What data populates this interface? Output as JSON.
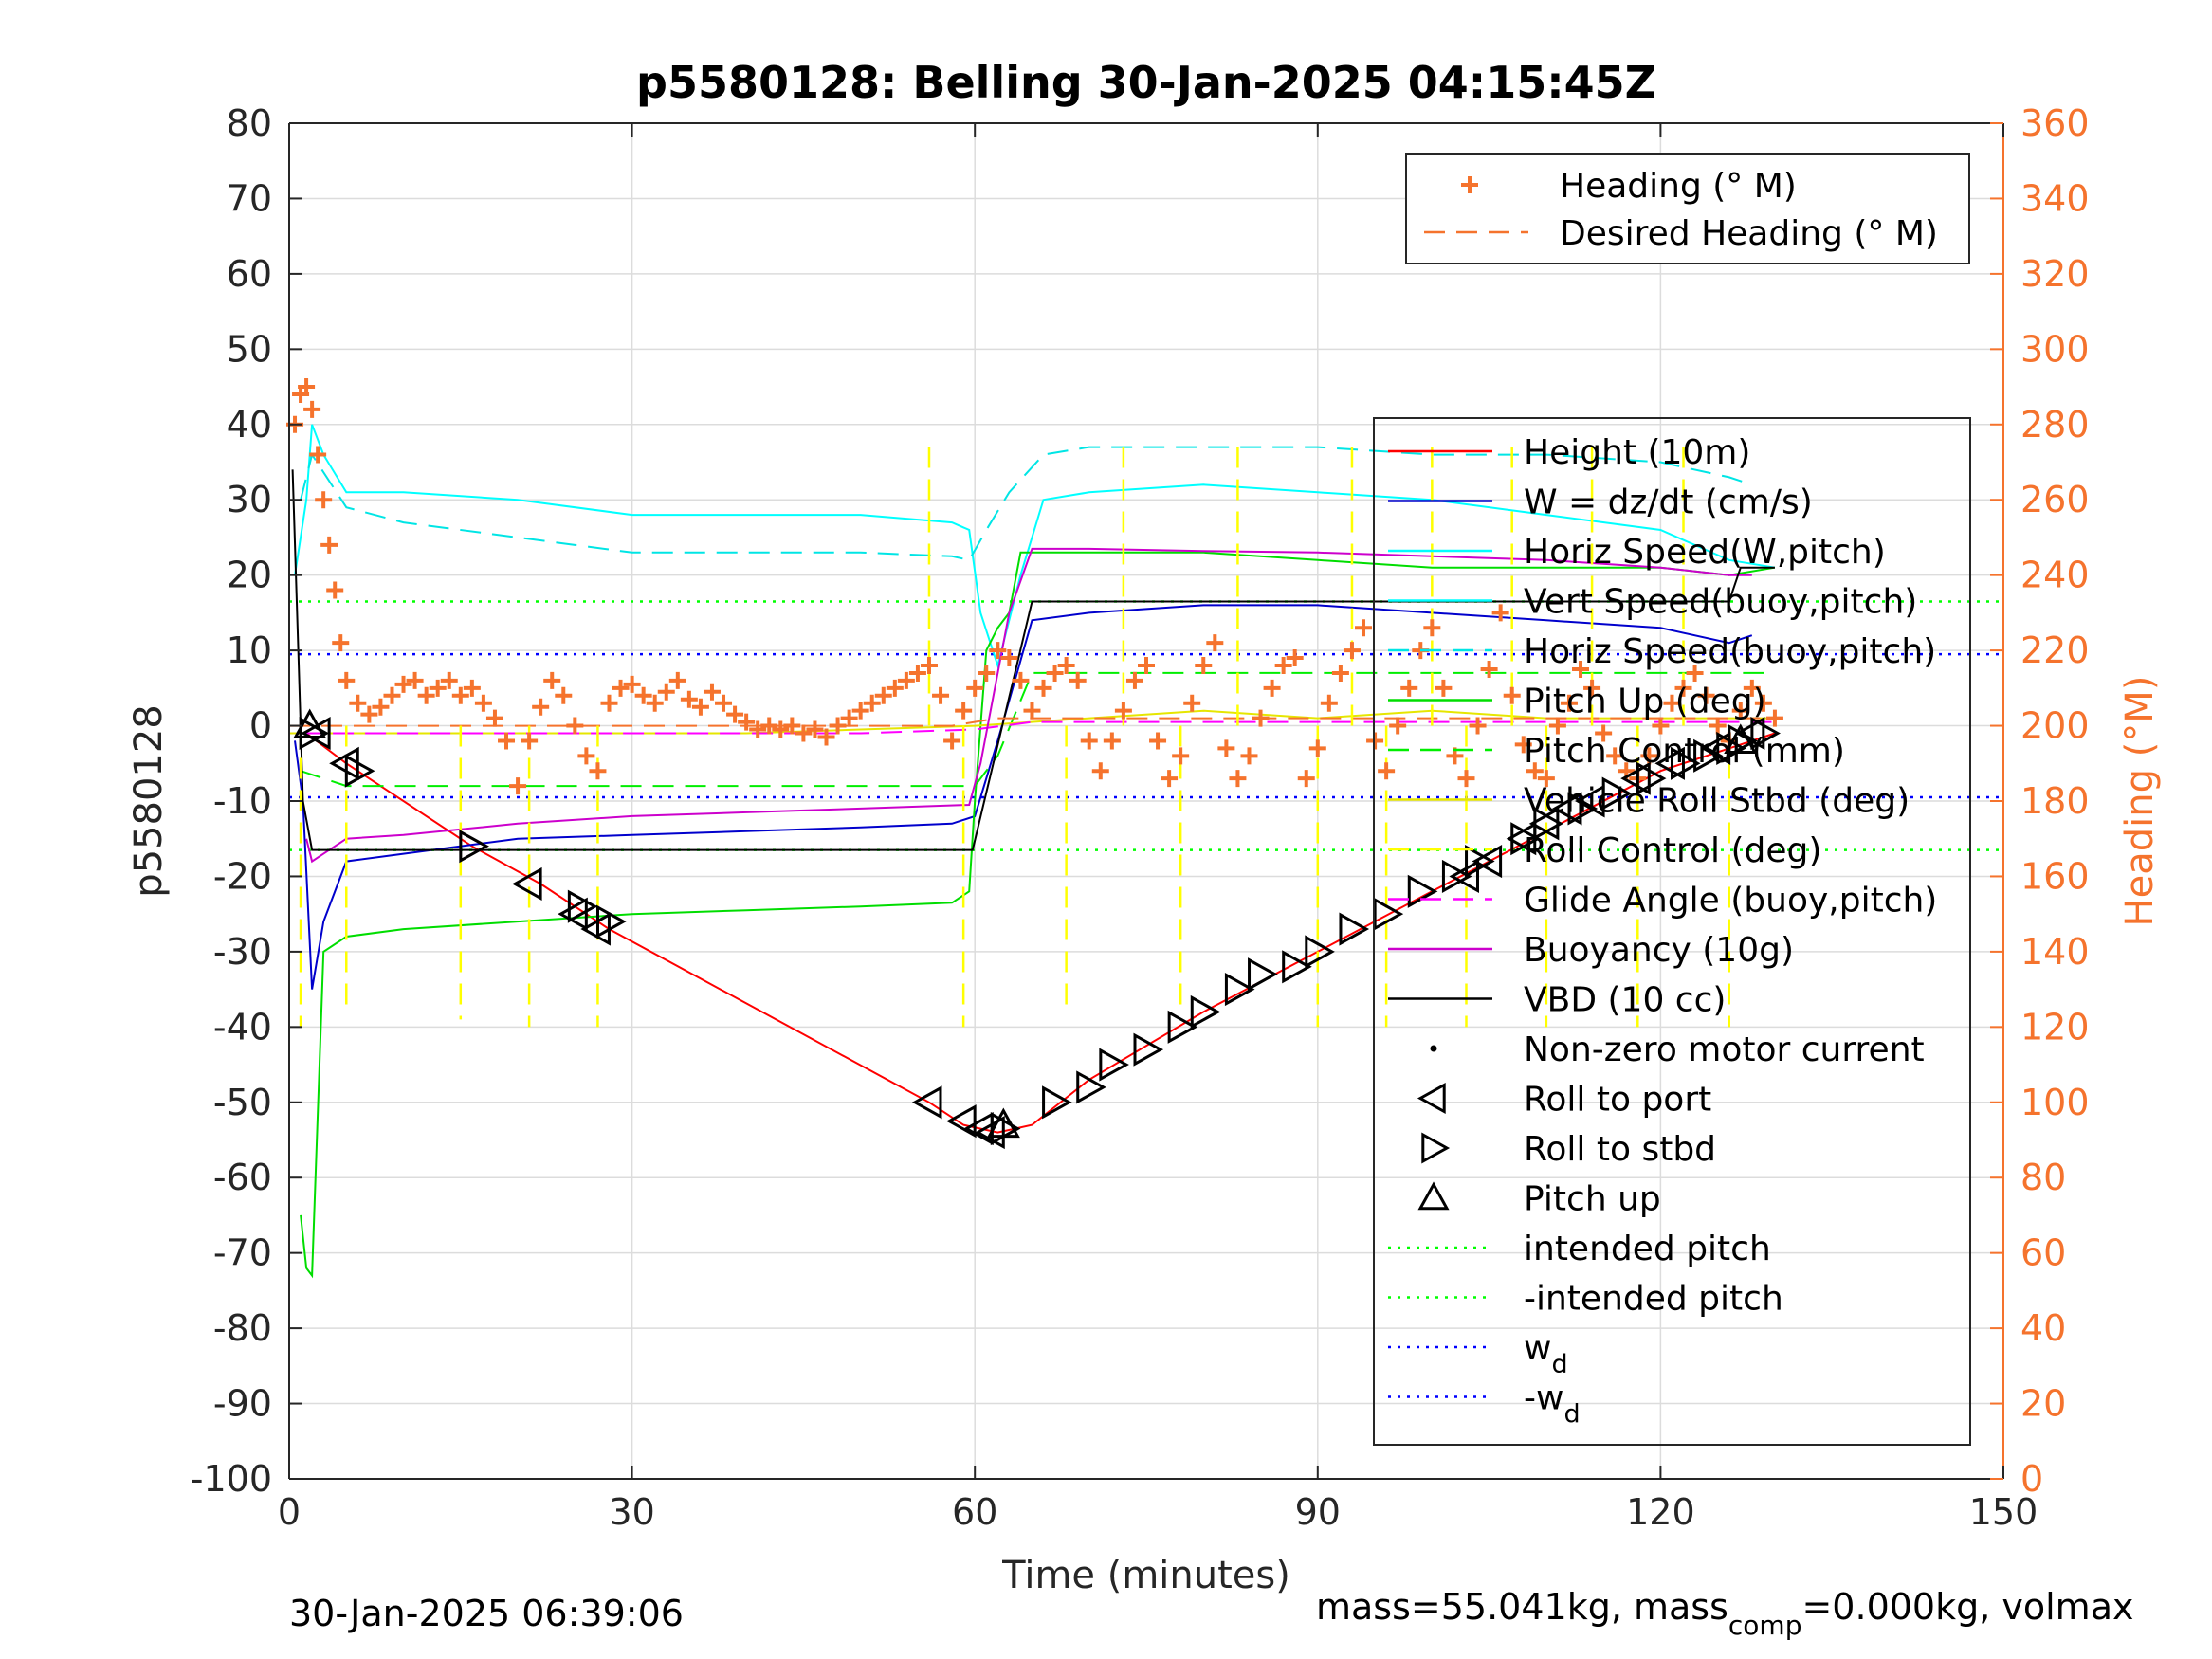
{
  "chart_data": {
    "type": "line",
    "title": "p5580128: Belling 30-Jan-2025 04:15:45Z",
    "xlabel": "Time (minutes)",
    "ylabel": "p5580128",
    "ylabel_right": "Heading (°M)",
    "xlim": [
      0,
      150
    ],
    "ylim": [
      -100,
      80
    ],
    "ylim_right": [
      0,
      360
    ],
    "xticks": [
      0,
      30,
      60,
      90,
      120,
      150
    ],
    "yticks": [
      -100,
      -90,
      -80,
      -70,
      -60,
      -50,
      -40,
      -30,
      -20,
      -10,
      0,
      10,
      20,
      30,
      40,
      50,
      60,
      70,
      80
    ],
    "yticks_right": [
      0,
      20,
      40,
      60,
      80,
      100,
      120,
      140,
      160,
      180,
      200,
      220,
      240,
      260,
      280,
      300,
      320,
      340,
      360
    ],
    "grid": true,
    "footer_left": "30-Jan-2025 06:39:06",
    "footer_right": {
      "pre": "mass=55.041kg, mass",
      "sub": "comp",
      "post": "=0.000kg, volmax"
    },
    "legend_top": {
      "placement": "top-right",
      "entries": [
        {
          "label": "Heading (° M)",
          "color": "#f5732d",
          "style": "plus"
        },
        {
          "label": "Desired Heading (° M)",
          "color": "#f5732d",
          "style": "dashed"
        }
      ]
    },
    "legend_main": {
      "placement": "right",
      "entries": [
        {
          "label": "Height (10m)",
          "color": "#ff0000",
          "style": "solid"
        },
        {
          "label": "W = dz/dt (cm/s)",
          "color": "#0000cc",
          "style": "solid"
        },
        {
          "label": "Horiz Speed(W,pitch)",
          "color": "#00ffff",
          "style": "solid"
        },
        {
          "label": "Vert Speed(buoy,pitch)",
          "color": "#00ffff",
          "style": "solid"
        },
        {
          "label": "Horiz Speed(buoy,pitch)",
          "color": "#00e5e5",
          "style": "dashed"
        },
        {
          "label": "Pitch Up (deg)",
          "color": "#00dd00",
          "style": "solid"
        },
        {
          "label": "Pitch Control (mm)",
          "color": "#00ee00",
          "style": "dashed"
        },
        {
          "label": "Vehicle Roll Stbd (deg)",
          "color": "#e6e600",
          "style": "solid"
        },
        {
          "label": "Roll Control (deg)",
          "color": "#ffff00",
          "style": "dashed"
        },
        {
          "label": "Glide Angle (buoy,pitch)",
          "color": "#ff00ff",
          "style": "dashed"
        },
        {
          "label": "Buoyancy (10g)",
          "color": "#cc00cc",
          "style": "solid"
        },
        {
          "label": "VBD (10 cc)",
          "color": "#000000",
          "style": "solid"
        },
        {
          "label": "Non-zero motor current",
          "color": "#000000",
          "style": "dot"
        },
        {
          "label": "Roll to port",
          "color": "#000000",
          "style": "tri-left"
        },
        {
          "label": "Roll to stbd",
          "color": "#000000",
          "style": "tri-right"
        },
        {
          "label": "Pitch up",
          "color": "#000000",
          "style": "tri-up"
        },
        {
          "label": "intended pitch",
          "color": "#00ff00",
          "style": "dotted"
        },
        {
          "label": "-intended pitch",
          "color": "#00ff00",
          "style": "dotted"
        },
        {
          "label": "w",
          "sub": "d",
          "color": "#0000ff",
          "style": "dotted"
        },
        {
          "label": "-w",
          "sub": "d",
          "color": "#0000ff",
          "style": "dotted"
        }
      ]
    },
    "series": [
      {
        "name": "Height (10m)",
        "axis": "left",
        "color": "#ff0000",
        "style": "solid",
        "x": [
          1.5,
          5,
          16,
          22,
          28,
          56,
          59,
          62,
          65,
          70,
          80,
          90,
          100,
          110,
          120,
          126,
          130
        ],
        "y": [
          -1,
          -5,
          -16,
          -21,
          -27,
          -50,
          -53,
          -54,
          -53,
          -47,
          -38,
          -30,
          -22,
          -14,
          -6,
          -3,
          -1
        ]
      },
      {
        "name": "W = dz/dt (cm/s)",
        "axis": "left",
        "color": "#0000cc",
        "style": "solid",
        "x": [
          0.5,
          1.2,
          2,
          3,
          5,
          10,
          20,
          30,
          40,
          50,
          58,
          60,
          62,
          65,
          70,
          80,
          90,
          100,
          110,
          120,
          126,
          128
        ],
        "y": [
          -2,
          -10,
          -35,
          -26,
          -18,
          -17,
          -15,
          -14.5,
          -14,
          -13.5,
          -13,
          -12,
          -2,
          14,
          15,
          16,
          16,
          15,
          14,
          13,
          11,
          12
        ]
      },
      {
        "name": "Horiz Speed(W,pitch)",
        "axis": "left",
        "color": "#00ffff",
        "style": "solid",
        "x": [
          0.5,
          1.5,
          2,
          3,
          5,
          10,
          20,
          30,
          40,
          50,
          58,
          59.5,
          60.5,
          62,
          64,
          66,
          70,
          80,
          90,
          100,
          110,
          120,
          126,
          130
        ],
        "y": [
          20,
          30,
          40,
          36,
          31,
          31,
          30,
          28,
          28,
          28,
          27,
          26,
          15,
          8,
          20,
          30,
          31,
          32,
          31,
          30,
          28,
          26,
          22,
          21
        ]
      },
      {
        "name": "Horiz Speed(buoy,pitch)",
        "axis": "left",
        "color": "#00e5e5",
        "style": "dashed",
        "x": [
          1,
          2,
          5,
          10,
          20,
          30,
          40,
          50,
          58,
          59.5,
          61,
          63,
          66,
          70,
          80,
          90,
          100,
          110,
          120,
          126,
          128
        ],
        "y": [
          30,
          36,
          29,
          27,
          25,
          23,
          23,
          23,
          22.5,
          22,
          26,
          31,
          36,
          37,
          37,
          37,
          36,
          36,
          35,
          33,
          32
        ]
      },
      {
        "name": "Pitch Up (deg)",
        "axis": "left",
        "color": "#00dd00",
        "style": "solid",
        "x": [
          1,
          1.5,
          2,
          3,
          5,
          10,
          20,
          30,
          40,
          50,
          58,
          59.5,
          60,
          61,
          62,
          63,
          64,
          70,
          80,
          90,
          100,
          110,
          120,
          126,
          130
        ],
        "y": [
          -65,
          -72,
          -73,
          -30,
          -28,
          -27,
          -26,
          -25,
          -24.5,
          -24,
          -23.5,
          -22,
          -10,
          10,
          13,
          15,
          23,
          23,
          23,
          22,
          21,
          21,
          21,
          20,
          21
        ]
      },
      {
        "name": "Pitch Control (mm)",
        "axis": "left",
        "color": "#00ee00",
        "style": "dashed",
        "x": [
          1,
          5,
          20,
          40,
          60,
          62,
          65,
          80,
          100,
          130
        ],
        "y": [
          -6,
          -8,
          -8,
          -8,
          -8,
          -4,
          7,
          7,
          7,
          7
        ]
      },
      {
        "name": "Vehicle Roll Stbd (deg)",
        "axis": "left",
        "color": "#e6e600",
        "style": "solid",
        "x": [
          0,
          10,
          20,
          30,
          40,
          50,
          60,
          70,
          80,
          90,
          100,
          110,
          120,
          130
        ],
        "y": [
          -1,
          -1,
          -1,
          -1,
          -1,
          -0.5,
          0,
          1,
          2,
          1,
          2,
          1,
          1,
          1
        ]
      },
      {
        "name": "Glide Angle (buoy,pitch)",
        "axis": "left",
        "color": "#ff00ff",
        "style": "dashed",
        "x": [
          1,
          10,
          30,
          50,
          60,
          65,
          80,
          100,
          120,
          130
        ],
        "y": [
          -1,
          -1,
          -1,
          -1,
          -0.5,
          0.5,
          0.5,
          0.5,
          0.5,
          0.5
        ]
      },
      {
        "name": "Buoyancy (10g)",
        "axis": "left",
        "color": "#cc00cc",
        "style": "solid",
        "x": [
          1.5,
          2,
          3,
          5,
          10,
          20,
          30,
          40,
          50,
          59.5,
          60.5,
          63,
          65,
          70,
          80,
          90,
          100,
          110,
          120,
          126,
          128
        ],
        "y": [
          -15,
          -18,
          -17,
          -15,
          -14.5,
          -13,
          -12,
          -11.5,
          -11,
          -10.5,
          -5,
          15,
          23.5,
          23.5,
          23.2,
          23,
          22.5,
          22,
          21,
          20,
          20
        ]
      },
      {
        "name": "VBD (10 cc)",
        "axis": "left",
        "color": "#000000",
        "style": "solid",
        "x": [
          0.3,
          0.8,
          1.2,
          2,
          3,
          10,
          20,
          30,
          40,
          50,
          59.8,
          65,
          70,
          80,
          90,
          100,
          110,
          120,
          126,
          127,
          130
        ],
        "y": [
          34,
          10,
          -10,
          -16.5,
          -16.5,
          -16.5,
          -16.5,
          -16.5,
          -16.5,
          -16.5,
          -16.5,
          16.5,
          16.5,
          16.5,
          16.5,
          16.5,
          16.5,
          16.5,
          16.5,
          21,
          21
        ]
      },
      {
        "name": "intended pitch",
        "axis": "left",
        "color": "#00ff00",
        "style": "dotted",
        "x": [
          0,
          150
        ],
        "y": [
          16.5,
          16.5
        ]
      },
      {
        "name": "-intended pitch",
        "axis": "left",
        "color": "#00ff00",
        "style": "dotted",
        "x": [
          0,
          150
        ],
        "y": [
          -16.5,
          -16.5
        ]
      },
      {
        "name": "w_d",
        "axis": "left",
        "color": "#0000ff",
        "style": "dotted",
        "x": [
          0,
          150
        ],
        "y": [
          9.5,
          9.5
        ]
      },
      {
        "name": "-w_d",
        "axis": "left",
        "color": "#0000ff",
        "style": "dotted",
        "x": [
          0,
          150
        ],
        "y": [
          -9.5,
          -9.5
        ]
      },
      {
        "name": "Desired Heading (° M)",
        "axis": "right",
        "color": "#f5732d",
        "style": "dashed",
        "x": [
          0,
          5,
          20,
          40,
          58,
          62,
          70,
          90,
          110,
          130
        ],
        "y": [
          200,
          200,
          200,
          200,
          200,
          202,
          202,
          202,
          202,
          202
        ]
      },
      {
        "name": "Heading (° M)",
        "axis": "right",
        "color": "#f5732d",
        "style": "plus",
        "x": [
          0.5,
          1,
          1.5,
          2,
          2.5,
          3,
          3.5,
          4,
          4.5,
          5,
          6,
          7,
          8,
          9,
          10,
          11,
          12,
          13,
          14,
          15,
          16,
          17,
          18,
          19,
          20,
          21,
          22,
          23,
          24,
          25,
          26,
          27,
          28,
          29,
          30,
          31,
          32,
          33,
          34,
          35,
          36,
          37,
          38,
          39,
          40,
          41,
          42,
          43,
          44,
          45,
          46,
          47,
          48,
          49,
          50,
          51,
          52,
          53,
          54,
          55,
          56,
          57,
          58,
          59,
          60,
          61,
          62,
          63,
          64,
          65,
          66,
          67,
          68,
          69,
          70,
          71,
          72,
          73,
          74,
          75,
          76,
          77,
          78,
          79,
          80,
          81,
          82,
          83,
          84,
          85,
          86,
          87,
          88,
          89,
          90,
          91,
          92,
          93,
          94,
          95,
          96,
          97,
          98,
          99,
          100,
          101,
          102,
          103,
          104,
          105,
          106,
          107,
          108,
          109,
          110,
          111,
          112,
          113,
          114,
          115,
          116,
          117,
          118,
          119,
          120,
          121,
          122,
          123,
          124,
          125,
          126,
          127,
          128,
          129,
          130
        ],
        "y": [
          280,
          288,
          290,
          284,
          272,
          260,
          248,
          236,
          222,
          212,
          206,
          203,
          205,
          208,
          211,
          212,
          208,
          210,
          212,
          208,
          210,
          206,
          202,
          196,
          184,
          196,
          205,
          212,
          208,
          200,
          192,
          188,
          206,
          210,
          211,
          208,
          206,
          209,
          212,
          207,
          205,
          209,
          206,
          203,
          201,
          199,
          200,
          199,
          200,
          198,
          199,
          197,
          200,
          202,
          204,
          206,
          208,
          210,
          212,
          214,
          216,
          208,
          196,
          204,
          210,
          214,
          220,
          218,
          212,
          204,
          210,
          214,
          216,
          212,
          196,
          188,
          196,
          204,
          212,
          216,
          196,
          186,
          192,
          206,
          216,
          222,
          194,
          186,
          192,
          202,
          210,
          216,
          218,
          186,
          194,
          206,
          214,
          220,
          226,
          196,
          188,
          200,
          210,
          220,
          226,
          210,
          192,
          186,
          200,
          215,
          230,
          208,
          195,
          188,
          186,
          200,
          206,
          215,
          210,
          198,
          192,
          188,
          186,
          192,
          200,
          206,
          210,
          214,
          208,
          200,
          196,
          204,
          210,
          206,
          202
        ]
      },
      {
        "name": "Roll to port",
        "axis": "left",
        "color": "#000000",
        "style": "tri-left",
        "x": [
          2.5,
          5,
          21,
          25,
          27,
          56,
          59,
          60.5,
          61.5,
          103,
          105,
          108,
          110,
          112,
          114,
          118,
          121,
          125,
          128
        ],
        "y": [
          -1,
          -5,
          -21,
          -25,
          -27,
          -50,
          -52.5,
          -53.5,
          -54,
          -20,
          -18,
          -15,
          -13,
          -11,
          -10,
          -7,
          -5,
          -3,
          -1
        ]
      },
      {
        "name": "Roll to stbd",
        "axis": "left",
        "color": "#000000",
        "style": "tri-right",
        "x": [
          2,
          6,
          16,
          25.5,
          28,
          62.5,
          67,
          70,
          72,
          75,
          78,
          80,
          83,
          85,
          88,
          90,
          93,
          96,
          99,
          102,
          104,
          108,
          110,
          113,
          116,
          119,
          122,
          124,
          126,
          127,
          129
        ],
        "y": [
          -1,
          -6,
          -16,
          -24,
          -26,
          -53.5,
          -50,
          -48,
          -45,
          -43,
          -40,
          -38,
          -35,
          -33,
          -32,
          -30,
          -27,
          -25,
          -22,
          -20,
          -18,
          -15,
          -13,
          -11,
          -9,
          -7,
          -5,
          -4,
          -3,
          -2,
          -1
        ]
      },
      {
        "name": "Pitch up",
        "axis": "left",
        "color": "#000000",
        "style": "tri-up",
        "x": [
          1.8,
          62.5,
          127
        ],
        "y": [
          0,
          -53,
          -2
        ]
      },
      {
        "name": "Roll Control (deg)",
        "axis": "left",
        "color": "#ffff00",
        "style": "spikes",
        "x": [
          1,
          5,
          15,
          21,
          27,
          56,
          59,
          68,
          73,
          78,
          83,
          90,
          93,
          96,
          100,
          103,
          107,
          110,
          114,
          118,
          122,
          126
        ],
        "y": [
          -40,
          -38,
          -39,
          -40,
          -40,
          38,
          -40,
          -38,
          38,
          -38,
          38,
          -40,
          38,
          -40,
          38,
          -40,
          38,
          -40,
          38,
          -40,
          38,
          -40
        ]
      }
    ]
  }
}
